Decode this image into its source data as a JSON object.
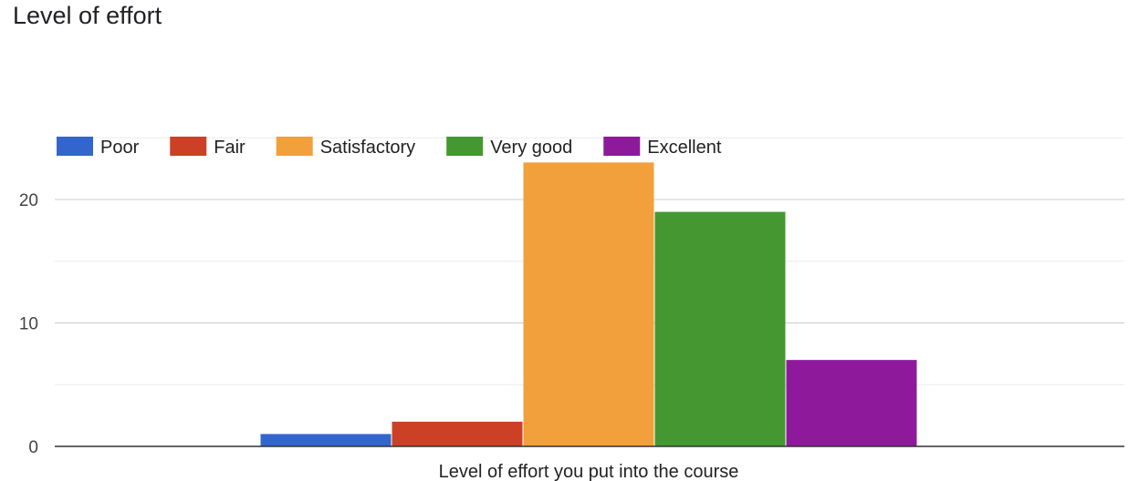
{
  "title": "Level of effort",
  "chart_data": {
    "type": "bar",
    "categories": [
      "Level of effort you put into the course"
    ],
    "series": [
      {
        "name": "Poor",
        "values": [
          1
        ],
        "color": "#3366cc"
      },
      {
        "name": "Fair",
        "values": [
          2
        ],
        "color": "#cc4125"
      },
      {
        "name": "Satisfactory",
        "values": [
          23
        ],
        "color": "#f1a03b"
      },
      {
        "name": "Very good",
        "values": [
          19
        ],
        "color": "#459732"
      },
      {
        "name": "Excellent",
        "values": [
          7
        ],
        "color": "#8e1a9b"
      }
    ],
    "xlabel": "Level of effort you put into the course",
    "ylabel": "",
    "ylim": [
      0,
      25
    ],
    "yticks": [
      0,
      10,
      20
    ],
    "grid": true,
    "legend": "top-left"
  }
}
